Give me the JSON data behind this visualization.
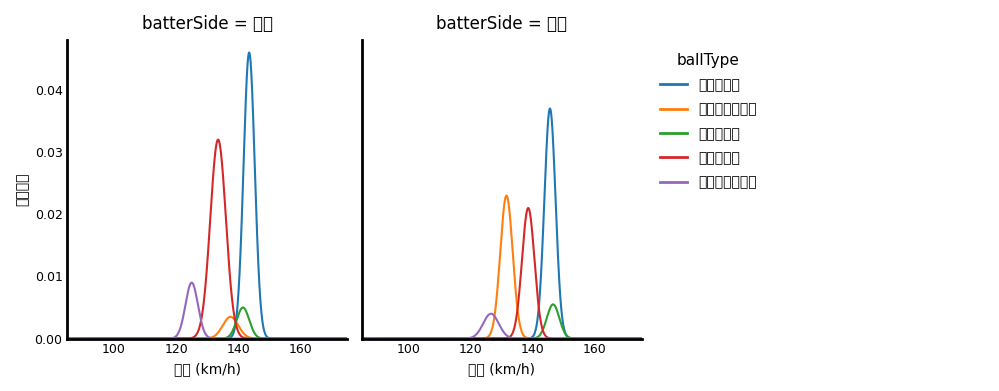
{
  "title_left": "batterSide = 右打",
  "title_right": "batterSide = 左打",
  "xlabel": "球速 (km/h)",
  "ylabel": "確率密度",
  "legend_title": "ballType",
  "legend_labels": [
    "ツーシーム",
    "チェンジアップ",
    "ストレート",
    "スライダー",
    "ナックルカーブ"
  ],
  "colors": [
    "#1f77b4",
    "#ff7f0e",
    "#2ca02c",
    "#d62728",
    "#9467bd"
  ],
  "xlim": [
    85,
    175
  ],
  "ylim": [
    0,
    0.048
  ],
  "xticks": [
    100,
    120,
    140,
    160
  ],
  "yticks": [
    0.0,
    0.01,
    0.02,
    0.03,
    0.04
  ],
  "panel_right": {
    "two_seam": {
      "mu": 143.5,
      "sigma": 1.8,
      "peak": 0.046
    },
    "changeup": {
      "mu": 137.5,
      "sigma": 2.5,
      "peak": 0.0035
    },
    "straight": {
      "mu": 141.5,
      "sigma": 2.0,
      "peak": 0.005
    },
    "slider": {
      "mu": 133.5,
      "sigma": 2.5,
      "peak": 0.032
    },
    "knucklecurve": {
      "mu": 125.0,
      "sigma": 2.0,
      "peak": 0.009
    }
  },
  "panel_left": {
    "two_seam": {
      "mu": 145.5,
      "sigma": 1.8,
      "peak": 0.037
    },
    "changeup": {
      "mu": 131.5,
      "sigma": 2.0,
      "peak": 0.023
    },
    "straight": {
      "mu": 146.5,
      "sigma": 2.0,
      "peak": 0.0055
    },
    "slider": {
      "mu": 138.5,
      "sigma": 2.0,
      "peak": 0.021
    },
    "knucklecurve": {
      "mu": 126.5,
      "sigma": 2.5,
      "peak": 0.004
    }
  },
  "background_color": "#ffffff"
}
